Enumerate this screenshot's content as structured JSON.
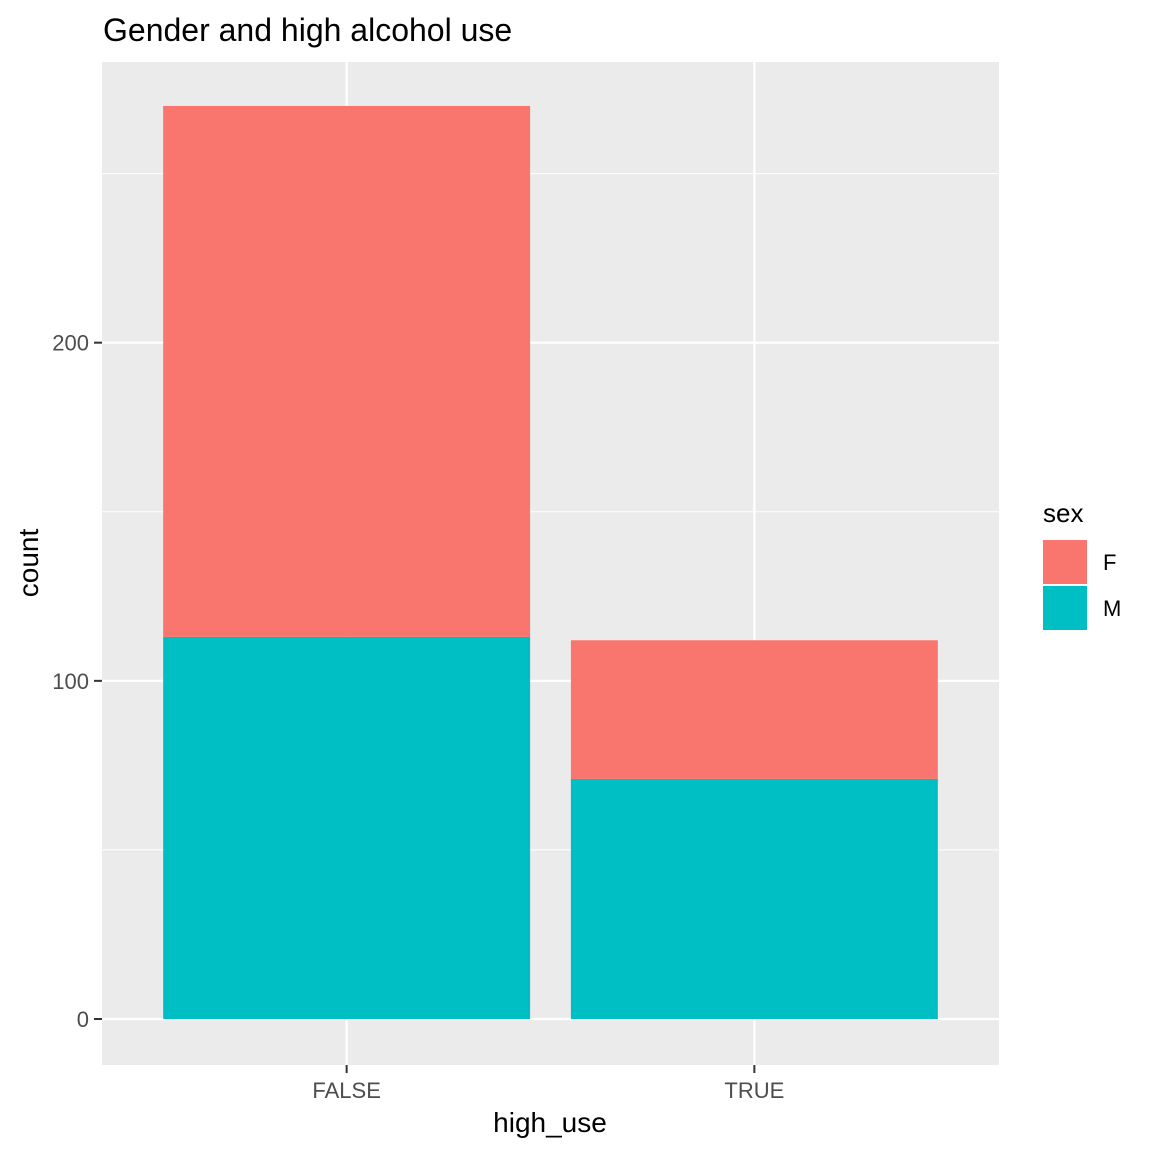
{
  "chart_data": {
    "type": "bar",
    "stacked": true,
    "title": "Gender and high alcohol use",
    "xlabel": "high_use",
    "ylabel": "count",
    "categories": [
      "FALSE",
      "TRUE"
    ],
    "y_ticks": [
      0,
      100,
      200
    ],
    "ylim": [
      -13.6,
      283
    ],
    "grid": true,
    "legend": {
      "title": "sex",
      "position": "right"
    },
    "series": [
      {
        "name": "F",
        "color": "#F8766D",
        "values": [
          157,
          41
        ]
      },
      {
        "name": "M",
        "color": "#00BFC4",
        "values": [
          113,
          71
        ]
      }
    ]
  }
}
